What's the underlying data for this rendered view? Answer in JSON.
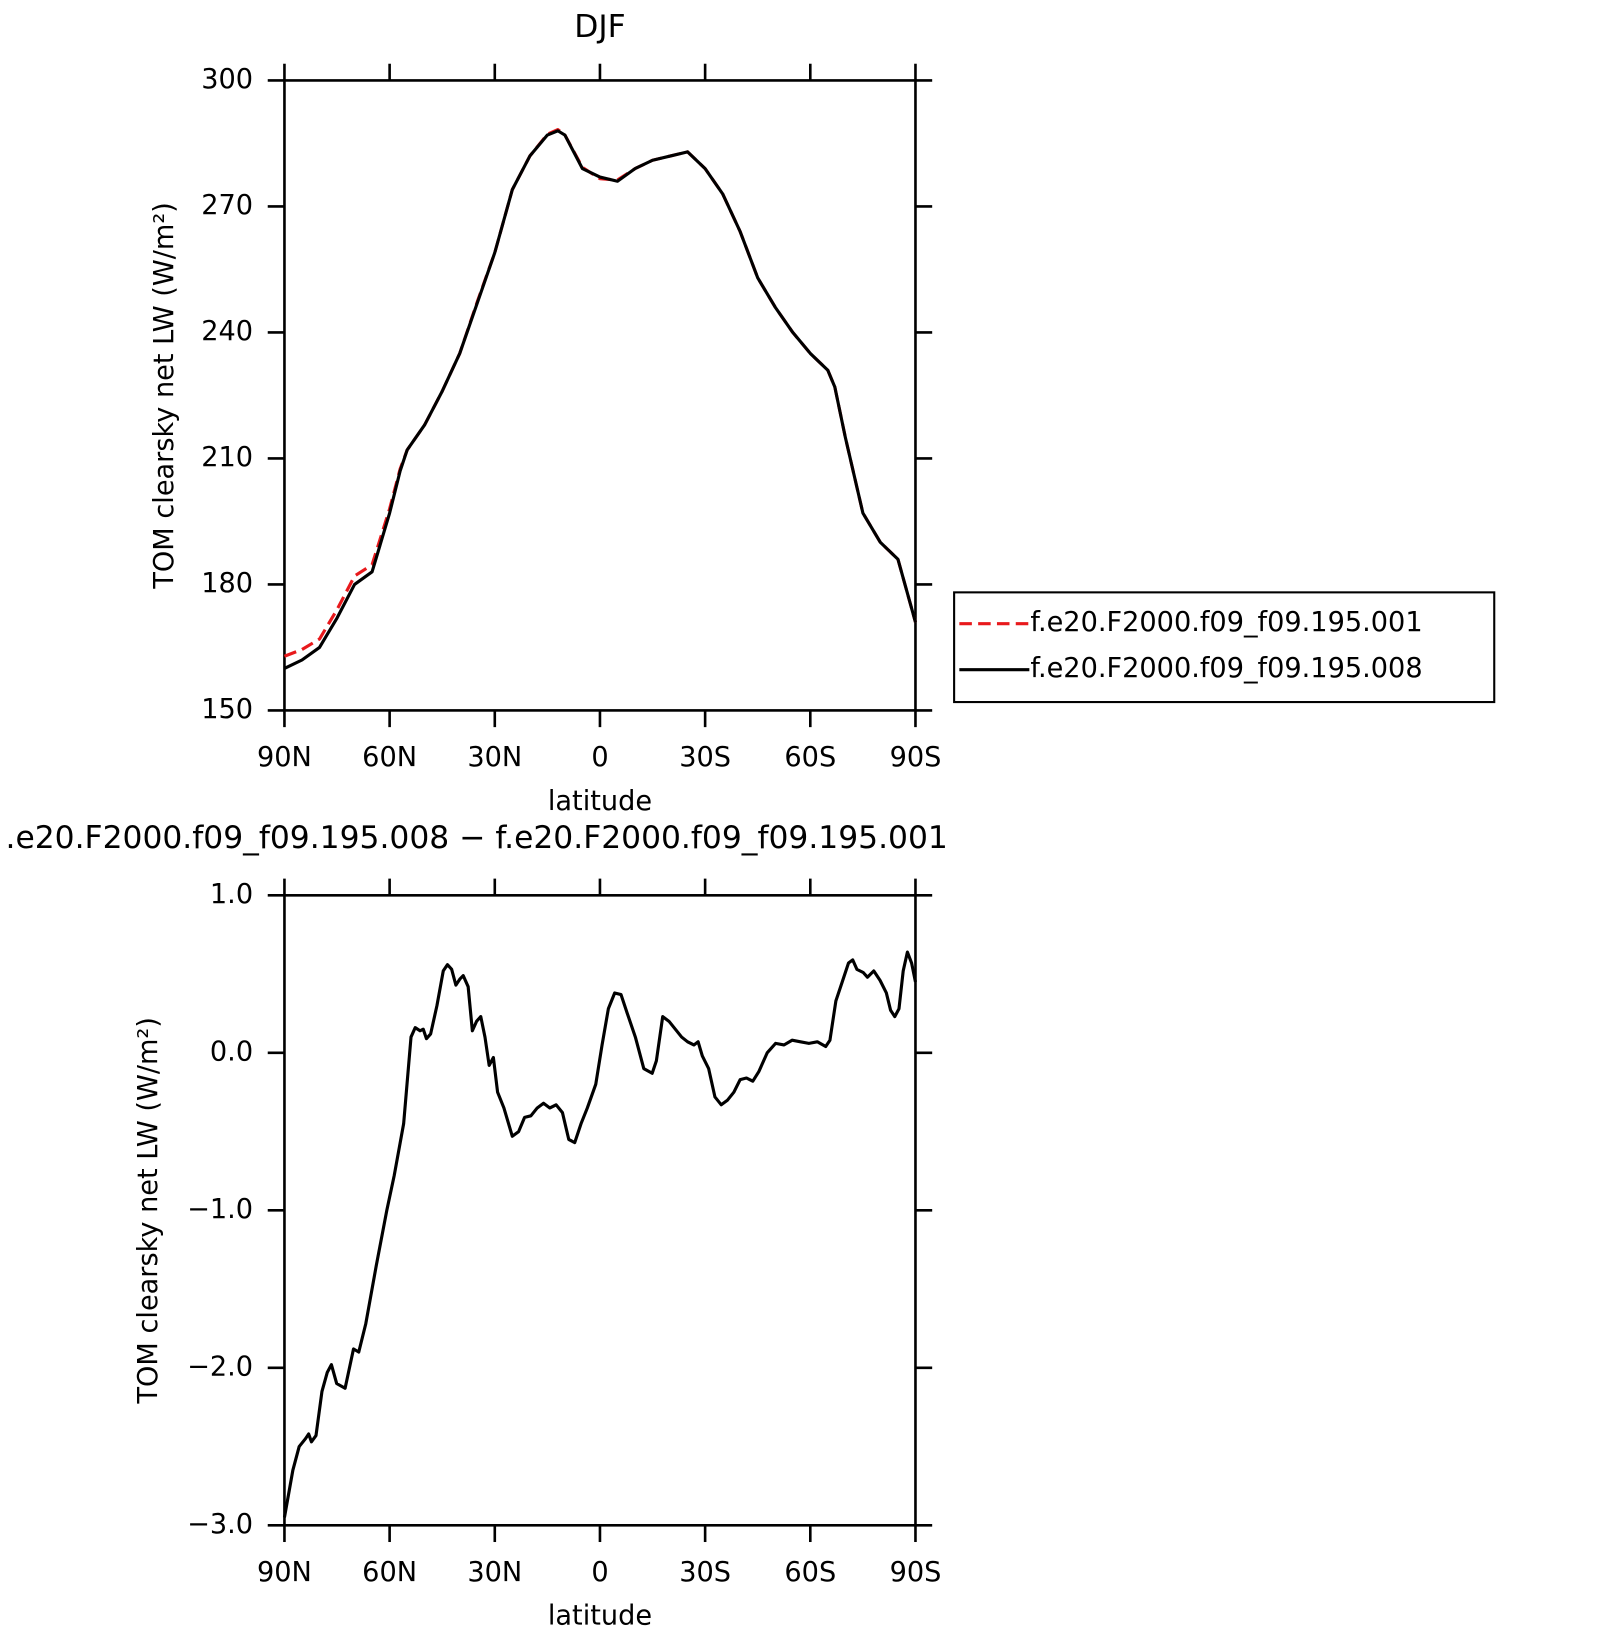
{
  "chart_data": [
    {
      "type": "line",
      "title": "DJF",
      "xlabel": "latitude",
      "ylabel": "TOM clearsky net LW (W/m²)",
      "x": [
        90,
        85,
        80,
        75,
        70,
        65,
        60,
        57,
        55,
        50,
        45,
        40,
        35,
        30,
        25,
        20,
        15,
        12,
        10,
        5,
        0,
        -5,
        -10,
        -15,
        -20,
        -25,
        -30,
        -35,
        -40,
        -45,
        -50,
        -55,
        -60,
        -65,
        -67,
        -70,
        -75,
        -80,
        -85,
        -90
      ],
      "series": [
        {
          "name": "f.e20.F2000.f09_f09.195.001",
          "color": "#e8191c",
          "linestyle": "dashed",
          "values": [
            162.9,
            164.5,
            167,
            174,
            182,
            184.7,
            198,
            207.5,
            212,
            218,
            226,
            235,
            247.3,
            259,
            274,
            282,
            287.2,
            288.3,
            287,
            279.3,
            276.6,
            276.3,
            279,
            281,
            282,
            283,
            279,
            273,
            264,
            253,
            246,
            240,
            235,
            231,
            227,
            215,
            197,
            190,
            186,
            171
          ]
        },
        {
          "name": "f.e20.F2000.f09_f09.195.008",
          "color": "#000000",
          "linestyle": "solid",
          "values": [
            160,
            162,
            165,
            172,
            180,
            183,
            197,
            207,
            212,
            218,
            226,
            235,
            247,
            259,
            274,
            282,
            287,
            288,
            287,
            279,
            277,
            276,
            279,
            281,
            282,
            283,
            279,
            273,
            264,
            253,
            246,
            240,
            235,
            231,
            227,
            215,
            197,
            190,
            186,
            171
          ]
        }
      ],
      "xlim": [
        90,
        -90
      ],
      "xticks": [
        {
          "value": 90,
          "label": "90N"
        },
        {
          "value": 60,
          "label": "60N"
        },
        {
          "value": 30,
          "label": "30N"
        },
        0,
        {
          "value": -30,
          "label": "30S"
        },
        {
          "value": -60,
          "label": "60S"
        },
        {
          "value": -90,
          "label": "90S"
        }
      ],
      "ylim": [
        150,
        300
      ],
      "yticks": [
        150,
        180,
        210,
        240,
        270,
        300
      ],
      "legend": "right"
    },
    {
      "type": "line",
      "title": ".e20.F2000.f09_f09.195.008 − f.e20.F2000.f09_f09.195.001",
      "xlabel": "latitude",
      "ylabel": "TOM clearsky net LW (W/m²)",
      "x": [
        90,
        87.6,
        85.8,
        84,
        83.1,
        82.3,
        81,
        79.3,
        77.8,
        76.6,
        75.1,
        72.7,
        70.3,
        68.8,
        66.8,
        63.8,
        60.8,
        58.7,
        56,
        53.9,
        52.7,
        51.3,
        50.4,
        49.5,
        48.3,
        46.5,
        44.7,
        43.5,
        42.3,
        41.1,
        39.9,
        39,
        37.6,
        36.4,
        35.2,
        34,
        32.8,
        31.6,
        30.4,
        29.2,
        27.4,
        25,
        23.2,
        21.5,
        19.7,
        17.9,
        16.1,
        14.3,
        12.5,
        10.7,
        8.9,
        7.2,
        5.4,
        3.6,
        1.2,
        -0.6,
        -2.4,
        -4.2,
        -6,
        -7.8,
        -10.1,
        -12.5,
        -14.9,
        -16.1,
        -17.9,
        -19.7,
        -21.5,
        -23.3,
        -25,
        -26.8,
        -28,
        -29.2,
        -31,
        -32.8,
        -34.6,
        -36.4,
        -38.2,
        -40,
        -41.8,
        -43.6,
        -45.3,
        -47.7,
        -50.1,
        -52.5,
        -54.8,
        -57.2,
        -59.6,
        -62,
        -64.4,
        -65.6,
        -67.3,
        -69.1,
        -70.9,
        -72.1,
        -73.3,
        -75.1,
        -76.3,
        -78.1,
        -79.9,
        -81.7,
        -82.9,
        -84.1,
        -85.3,
        -86.5,
        -87.7,
        -88.9,
        -90
      ],
      "series": [
        {
          "name": null,
          "color": "#000000",
          "linestyle": "solid",
          "values": [
            -2.95,
            -2.65,
            -2.5,
            -2.45,
            -2.42,
            -2.47,
            -2.43,
            -2.15,
            -2.03,
            -1.98,
            -2.1,
            -2.13,
            -1.88,
            -1.9,
            -1.72,
            -1.35,
            -1.0,
            -0.78,
            -0.45,
            0.1,
            0.16,
            0.14,
            0.15,
            0.09,
            0.12,
            0.3,
            0.52,
            0.56,
            0.53,
            0.43,
            0.47,
            0.49,
            0.42,
            0.14,
            0.2,
            0.23,
            0.1,
            -0.08,
            -0.03,
            -0.25,
            -0.35,
            -0.53,
            -0.5,
            -0.41,
            -0.4,
            -0.35,
            -0.32,
            -0.35,
            -0.33,
            -0.38,
            -0.55,
            -0.57,
            -0.45,
            -0.35,
            -0.2,
            0.05,
            0.28,
            0.38,
            0.37,
            0.25,
            0.1,
            -0.1,
            -0.13,
            -0.05,
            0.23,
            0.2,
            0.15,
            0.1,
            0.07,
            0.05,
            0.07,
            -0.02,
            -0.1,
            -0.28,
            -0.33,
            -0.3,
            -0.25,
            -0.17,
            -0.16,
            -0.18,
            -0.12,
            0.0,
            0.06,
            0.05,
            0.08,
            0.07,
            0.06,
            0.07,
            0.04,
            0.08,
            0.33,
            0.45,
            0.57,
            0.59,
            0.53,
            0.51,
            0.48,
            0.52,
            0.46,
            0.38,
            0.27,
            0.23,
            0.28,
            0.52,
            0.64,
            0.57,
            0.45
          ]
        }
      ],
      "xlim": [
        90,
        -90
      ],
      "xticks": [
        {
          "value": 90,
          "label": "90N"
        },
        {
          "value": 60,
          "label": "60N"
        },
        {
          "value": 30,
          "label": "30N"
        },
        0,
        {
          "value": -30,
          "label": "30S"
        },
        {
          "value": -60,
          "label": "60S"
        },
        {
          "value": -90,
          "label": "90S"
        }
      ],
      "ylim": [
        -3,
        1
      ],
      "yticks": [
        {
          "value": -3,
          "label": "−3.0"
        },
        {
          "value": -2,
          "label": "−2.0"
        },
        {
          "value": -1,
          "label": "−1.0"
        },
        {
          "value": 0,
          "label": "0.0"
        },
        {
          "value": 1,
          "label": "1.0"
        }
      ]
    }
  ]
}
